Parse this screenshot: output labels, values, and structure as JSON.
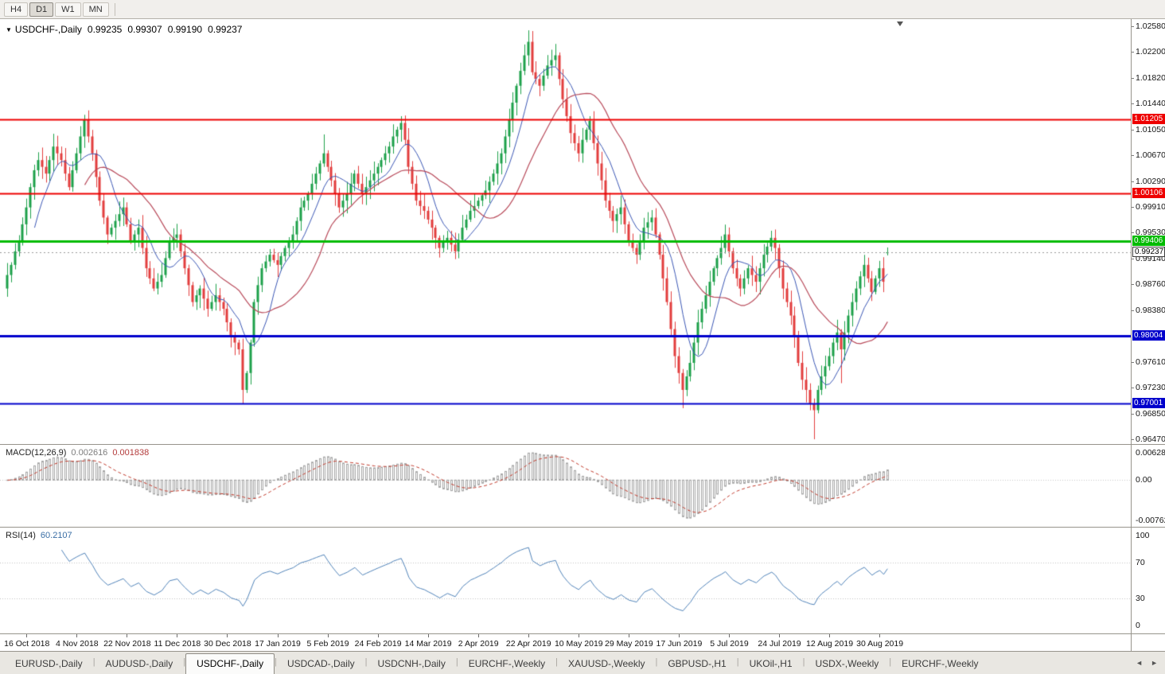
{
  "toolbar": {
    "timeframes": [
      {
        "label": "H4",
        "active": false
      },
      {
        "label": "D1",
        "active": true
      },
      {
        "label": "W1",
        "active": false
      },
      {
        "label": "MN",
        "active": false
      }
    ]
  },
  "header": {
    "collapse_icon": "▼",
    "symbol": "USDCHF-,Daily",
    "ohlc": {
      "open": "0.99235",
      "high": "0.99307",
      "low": "0.99190",
      "close": "0.99237"
    }
  },
  "indicators": {
    "macd": {
      "name": "MACD(12,26,9)",
      "main_value": "0.002616",
      "signal_value": "0.001838"
    },
    "rsi": {
      "name": "RSI(14)",
      "value": "60.2107"
    }
  },
  "tabs": {
    "items": [
      {
        "label": "EURUSD-,Daily",
        "active": false
      },
      {
        "label": "AUDUSD-,Daily",
        "active": false
      },
      {
        "label": "USDCHF-,Daily",
        "active": true
      },
      {
        "label": "USDCAD-,Daily",
        "active": false
      },
      {
        "label": "USDCNH-,Daily",
        "active": false
      },
      {
        "label": "EURCHF-,Weekly",
        "active": false
      },
      {
        "label": "XAUUSD-,Weekly",
        "active": false
      },
      {
        "label": "GBPUSD-,H1",
        "active": false
      },
      {
        "label": "UKOil-,H1",
        "active": false
      },
      {
        "label": "USDX-,Weekly",
        "active": false
      },
      {
        "label": "EURCHF-,Weekly",
        "active": false
      }
    ],
    "scroll_left": "◄",
    "scroll_right": "►"
  },
  "chart_data": {
    "type": "candlestick",
    "title": "USDCHF-,Daily",
    "symbol": "USDCHF",
    "timeframe": "Daily",
    "ohlc_current": {
      "open": 0.99235,
      "high": 0.99307,
      "low": 0.9919,
      "close": 0.99237
    },
    "colors": {
      "bull": "#1da04a",
      "bear": "#e23d3d"
    },
    "y_axis": {
      "max": 1.0258,
      "min": 0.9647,
      "ticks": [
        "1.02580",
        "1.02200",
        "1.01820",
        "1.01440",
        "1.01050",
        "1.00670",
        "1.00290",
        "0.99910",
        "0.99530",
        "0.99140",
        "0.98760",
        "0.98380",
        "0.97610",
        "0.97230",
        "0.96850",
        "0.96470"
      ]
    },
    "x_axis": {
      "first_index": 5,
      "index_step": 13,
      "labels": [
        "16 Oct 2018",
        "4 Nov 2018",
        "22 Nov 2018",
        "11 Dec 2018",
        "30 Dec 2018",
        "17 Jan 2019",
        "5 Feb 2019",
        "24 Feb 2019",
        "14 Mar 2019",
        "2 Apr 2019",
        "22 Apr 2019",
        "10 May 2019",
        "29 May 2019",
        "17 Jun 2019",
        "5 Jul 2019",
        "24 Jul 2019",
        "12 Aug 2019",
        "30 Aug 2019"
      ]
    },
    "levels": [
      {
        "price": 1.01205,
        "label": "1.01205",
        "color": "#ee0000",
        "width": 2,
        "chip_bg": "#ee0000",
        "chip_fg": "#ffffff"
      },
      {
        "price": 1.00106,
        "label": "1.00106",
        "color": "#ee0000",
        "width": 2,
        "chip_bg": "#ee0000",
        "chip_fg": "#ffffff"
      },
      {
        "price": 0.99406,
        "label": "0.99406",
        "color": "#00bb00",
        "width": 3,
        "chip_bg": "#00bb00",
        "chip_fg": "#ffffff"
      },
      {
        "price": 0.98004,
        "label": "0.98004",
        "color": "#0000cc",
        "width": 3,
        "chip_bg": "#0000cc",
        "chip_fg": "#ffffff"
      },
      {
        "price": 0.97001,
        "label": "0.97001",
        "color": "#0000cc",
        "width": 2,
        "chip_bg": "#0000cc",
        "chip_fg": "#ffffff"
      }
    ],
    "current_price": {
      "value": 0.99237,
      "label": "0.99237"
    },
    "moving_averages": [
      {
        "name": "fast-ma",
        "period": 8,
        "color": "#3a56b4",
        "width": 1
      },
      {
        "name": "slow-ma",
        "period": 21,
        "color": "#b84a5a",
        "width": 1.2
      }
    ],
    "candles": {
      "count": 229,
      "first_open": 0.987,
      "closes": [
        0.989,
        0.9905,
        0.9925,
        0.994,
        0.9965,
        0.999,
        1.002,
        1.0045,
        1.006,
        1.005,
        1.004,
        1.006,
        1.008,
        1.007,
        1.006,
        1.004,
        1.002,
        1.0045,
        1.007,
        1.0095,
        1.012,
        1.0095,
        1.007,
        1.0035,
        1.0,
        0.9975,
        0.995,
        0.996,
        0.997,
        0.998,
        0.999,
        0.9965,
        0.994,
        0.995,
        0.996,
        0.993,
        0.99,
        0.9885,
        0.987,
        0.988,
        0.989,
        0.9915,
        0.994,
        0.9945,
        0.995,
        0.9925,
        0.99,
        0.9875,
        0.985,
        0.986,
        0.987,
        0.9855,
        0.984,
        0.985,
        0.986,
        0.985,
        0.984,
        0.982,
        0.98,
        0.979,
        0.978,
        0.972,
        0.9745,
        0.979,
        0.985,
        0.9875,
        0.99,
        0.991,
        0.992,
        0.9912,
        0.9905,
        0.9918,
        0.993,
        0.994,
        0.995,
        0.997,
        0.999,
        1.0,
        1.001,
        1.0025,
        1.004,
        1.0055,
        1.007,
        1.005,
        1.003,
        1.001,
        0.999,
        1.0,
        1.001,
        1.0025,
        1.004,
        1.0025,
        1.001,
        1.002,
        1.003,
        1.004,
        1.005,
        1.006,
        1.007,
        1.008,
        1.0095,
        1.0105,
        1.0115,
        1.009,
        1.005,
        1.0025,
        1.0,
        0.9992,
        0.9985,
        0.9972,
        0.996,
        0.9945,
        0.993,
        0.9938,
        0.9945,
        0.9935,
        0.9925,
        0.9942,
        0.996,
        0.9972,
        0.9985,
        0.9992,
        1.0,
        1.0008,
        1.0015,
        1.0028,
        1.004,
        1.0055,
        1.007,
        1.0095,
        1.012,
        1.0145,
        1.017,
        1.0192,
        1.0215,
        1.0235,
        1.019,
        1.018,
        1.017,
        1.0185,
        1.02,
        1.0208,
        1.0215,
        1.018,
        1.015,
        1.0125,
        1.01,
        1.0085,
        1.007,
        1.009,
        1.0105,
        1.0118,
        1.0085,
        1.0055,
        1.003,
        1.0,
        0.9985,
        0.997,
        0.998,
        0.999,
        0.9965,
        0.994,
        0.993,
        0.992,
        0.994,
        0.996,
        0.9968,
        0.9975,
        0.995,
        0.992,
        0.9885,
        0.985,
        0.981,
        0.977,
        0.9745,
        0.972,
        0.974,
        0.976,
        0.979,
        0.982,
        0.984,
        0.986,
        0.988,
        0.99,
        0.9915,
        0.993,
        0.995,
        0.9925,
        0.99,
        0.9885,
        0.987,
        0.9885,
        0.99,
        0.989,
        0.988,
        0.99,
        0.992,
        0.9932,
        0.9945,
        0.993,
        0.99,
        0.987,
        0.985,
        0.983,
        0.98,
        0.976,
        0.9735,
        0.972,
        0.97,
        0.969,
        0.972,
        0.974,
        0.9755,
        0.977,
        0.979,
        0.9805,
        0.978,
        0.9805,
        0.983,
        0.985,
        0.987,
        0.9888,
        0.9905,
        0.9885,
        0.9865,
        0.9885,
        0.99,
        0.988,
        0.99237
      ],
      "overrides": {
        "20": {
          "high": 1.0127
        },
        "61": {
          "low": 0.97
        },
        "82": {
          "high": 1.0098
        },
        "102": {
          "high": 1.0125
        },
        "135": {
          "high": 1.0252
        },
        "151": {
          "high": 1.0125
        },
        "175": {
          "low": 0.9693
        },
        "209": {
          "low": 0.9647
        },
        "216": {
          "low": 0.973
        },
        "228": {
          "open": 0.99235,
          "high": 0.99307,
          "low": 0.9919
        }
      }
    },
    "macd": {
      "name": "MACD(12,26,9)",
      "fast": 12,
      "slow": 26,
      "signal": 9,
      "main_value": 0.002616,
      "signal_value": 0.001838,
      "axis_labels": [
        "0.006286",
        "0.00",
        "-0.00762"
      ],
      "histogram_color": "#a6a6a6",
      "signal_color": "#c0392b"
    },
    "rsi": {
      "name": "RSI(14)",
      "period": 14,
      "value": 60.2107,
      "levels": [
        70,
        30
      ],
      "axis_labels": [
        "100",
        "70",
        "30",
        "0"
      ],
      "line_color": "#4f82b8",
      "level_color": "#c0c0c0"
    }
  }
}
